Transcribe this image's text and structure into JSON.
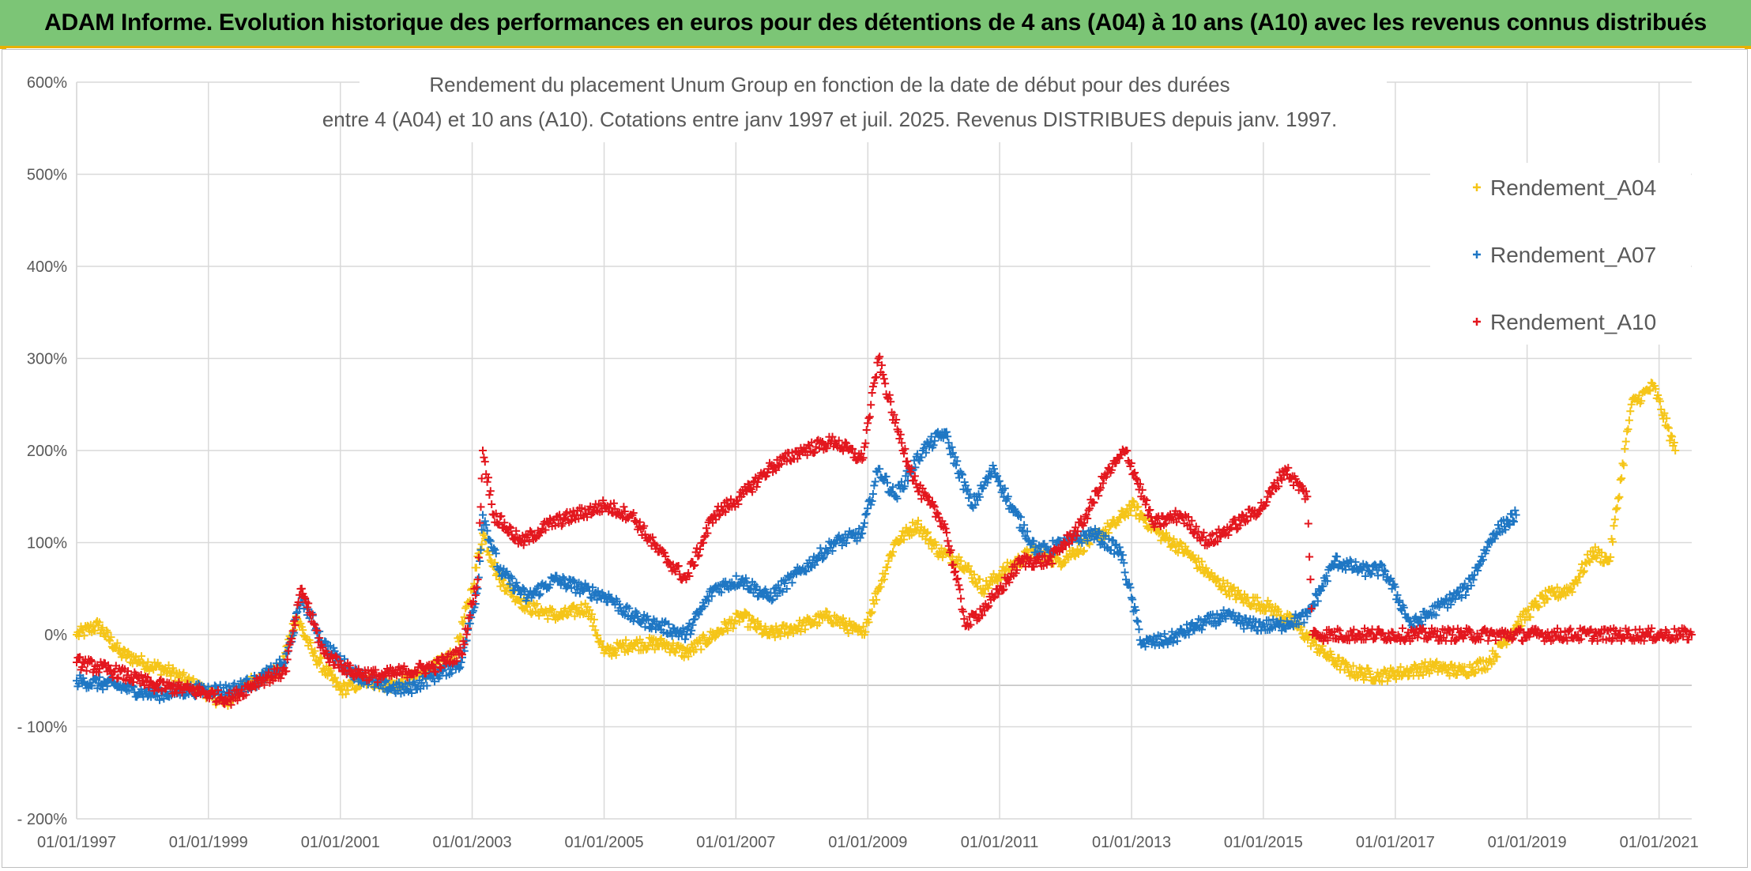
{
  "banner": {
    "title": "ADAM Informe. Evolution historique des performances en euros pour des détentions de 4 ans (A04) à 10 ans (A10) avec les revenus connus distribués"
  },
  "colors": {
    "A04": "#f5c518",
    "A07": "#1f77c4",
    "A10": "#e3171e",
    "banner_bg": "#7cc576",
    "banner_border": "#e8b100"
  },
  "chart_data": {
    "type": "scatter",
    "title_line1": "Rendement du placement Unum Group en fonction de la date de début pour des durées",
    "title_line2": "entre 4 (A04) et 10 ans (A10). Cotations entre janv 1997 et juil. 2025. Revenus DISTRIBUES depuis janv. 1997.",
    "xlabel": "",
    "ylabel": "",
    "marker": "+",
    "y_unit": "%",
    "xlim": [
      "1997-01-01",
      "2021-07-01"
    ],
    "ylim": [
      -200,
      600
    ],
    "x_ticks": [
      "01/01/1997",
      "01/01/1999",
      "01/01/2001",
      "01/01/2003",
      "01/01/2005",
      "01/01/2007",
      "01/01/2009",
      "01/01/2011",
      "01/01/2013",
      "01/01/2015",
      "01/01/2017",
      "01/01/2019",
      "01/01/2021"
    ],
    "y_ticks": [
      -200,
      -100,
      0,
      100,
      200,
      300,
      400,
      500,
      600
    ],
    "y_tick_labels": [
      "- 200%",
      "- 100%",
      "0%",
      "100%",
      "200%",
      "300%",
      "400%",
      "500%",
      "600%"
    ],
    "grid": true,
    "legend_position": "top-right",
    "series": [
      {
        "name": "Rendement_A04",
        "color": "#f5c518",
        "points": [
          [
            "1997-01-01",
            0
          ],
          [
            "1997-05-01",
            10
          ],
          [
            "1997-09-01",
            -20
          ],
          [
            "1998-01-01",
            -30
          ],
          [
            "1998-06-01",
            -40
          ],
          [
            "1998-12-01",
            -60
          ],
          [
            "1999-04-01",
            -75
          ],
          [
            "1999-09-01",
            -50
          ],
          [
            "2000-02-01",
            -40
          ],
          [
            "2000-05-01",
            20
          ],
          [
            "2000-08-01",
            -20
          ],
          [
            "2001-01-01",
            -60
          ],
          [
            "2001-06-01",
            -50
          ],
          [
            "2001-11-01",
            -55
          ],
          [
            "2002-05-01",
            -40
          ],
          [
            "2002-10-01",
            -20
          ],
          [
            "2003-01-01",
            50
          ],
          [
            "2003-03-01",
            110
          ],
          [
            "2003-06-01",
            60
          ],
          [
            "2003-11-01",
            30
          ],
          [
            "2004-05-01",
            20
          ],
          [
            "2004-10-01",
            30
          ],
          [
            "2005-01-01",
            -20
          ],
          [
            "2005-06-01",
            -10
          ],
          [
            "2005-12-01",
            -10
          ],
          [
            "2006-04-01",
            -20
          ],
          [
            "2006-09-01",
            0
          ],
          [
            "2007-02-01",
            20
          ],
          [
            "2007-07-01",
            0
          ],
          [
            "2008-01-01",
            10
          ],
          [
            "2008-06-01",
            20
          ],
          [
            "2008-12-01",
            0
          ],
          [
            "2009-03-01",
            50
          ],
          [
            "2009-06-01",
            100
          ],
          [
            "2009-10-01",
            120
          ],
          [
            "2010-02-01",
            90
          ],
          [
            "2010-06-01",
            80
          ],
          [
            "2010-10-01",
            50
          ],
          [
            "2011-02-01",
            70
          ],
          [
            "2011-07-01",
            90
          ],
          [
            "2011-12-01",
            80
          ],
          [
            "2012-05-01",
            100
          ],
          [
            "2012-10-01",
            120
          ],
          [
            "2013-01-01",
            140
          ],
          [
            "2013-06-01",
            110
          ],
          [
            "2013-11-01",
            90
          ],
          [
            "2014-04-01",
            60
          ],
          [
            "2014-09-01",
            40
          ],
          [
            "2015-02-01",
            30
          ],
          [
            "2015-07-01",
            10
          ],
          [
            "2015-12-01",
            -20
          ],
          [
            "2016-05-01",
            -40
          ],
          [
            "2016-10-01",
            -45
          ],
          [
            "2017-03-01",
            -40
          ],
          [
            "2017-08-01",
            -35
          ],
          [
            "2018-01-01",
            -40
          ],
          [
            "2018-06-01",
            -30
          ],
          [
            "2018-11-01",
            10
          ],
          [
            "2019-04-01",
            40
          ],
          [
            "2019-09-01",
            50
          ],
          [
            "2020-01-01",
            90
          ],
          [
            "2020-04-01",
            80
          ],
          [
            "2020-08-01",
            250
          ],
          [
            "2020-12-01",
            270
          ],
          [
            "2021-04-01",
            200
          ]
        ]
      },
      {
        "name": "Rendement_A07",
        "color": "#1f77c4",
        "points": [
          [
            "1997-01-01",
            -50
          ],
          [
            "1997-08-01",
            -55
          ],
          [
            "1998-03-01",
            -65
          ],
          [
            "1998-10-01",
            -60
          ],
          [
            "1999-05-01",
            -60
          ],
          [
            "1999-10-01",
            -50
          ],
          [
            "2000-03-01",
            -30
          ],
          [
            "2000-06-01",
            40
          ],
          [
            "2000-10-01",
            -10
          ],
          [
            "2001-03-01",
            -40
          ],
          [
            "2001-08-01",
            -55
          ],
          [
            "2002-01-01",
            -60
          ],
          [
            "2002-06-01",
            -45
          ],
          [
            "2002-11-01",
            -30
          ],
          [
            "2003-02-01",
            50
          ],
          [
            "2003-03-01",
            130
          ],
          [
            "2003-06-01",
            70
          ],
          [
            "2003-11-01",
            40
          ],
          [
            "2004-04-01",
            60
          ],
          [
            "2004-09-01",
            50
          ],
          [
            "2005-02-01",
            40
          ],
          [
            "2005-06-01",
            20
          ],
          [
            "2005-11-01",
            10
          ],
          [
            "2006-04-01",
            0
          ],
          [
            "2006-09-01",
            50
          ],
          [
            "2007-02-01",
            60
          ],
          [
            "2007-07-01",
            40
          ],
          [
            "2008-01-01",
            70
          ],
          [
            "2008-07-01",
            100
          ],
          [
            "2008-12-01",
            110
          ],
          [
            "2009-03-01",
            180
          ],
          [
            "2009-06-01",
            150
          ],
          [
            "2009-11-01",
            200
          ],
          [
            "2010-03-01",
            220
          ],
          [
            "2010-08-01",
            140
          ],
          [
            "2010-12-01",
            180
          ],
          [
            "2011-03-01",
            140
          ],
          [
            "2011-08-01",
            90
          ],
          [
            "2012-01-01",
            100
          ],
          [
            "2012-06-01",
            110
          ],
          [
            "2012-11-01",
            90
          ],
          [
            "2013-03-01",
            -10
          ],
          [
            "2013-08-01",
            -5
          ],
          [
            "2014-01-01",
            10
          ],
          [
            "2014-06-01",
            20
          ],
          [
            "2014-11-01",
            10
          ],
          [
            "2015-04-01",
            10
          ],
          [
            "2015-09-01",
            20
          ],
          [
            "2016-02-01",
            80
          ],
          [
            "2016-07-01",
            70
          ],
          [
            "2016-11-01",
            70
          ],
          [
            "2017-04-01",
            10
          ],
          [
            "2017-09-01",
            30
          ],
          [
            "2018-02-01",
            50
          ],
          [
            "2018-07-01",
            110
          ],
          [
            "2018-11-01",
            130
          ]
        ]
      },
      {
        "name": "Rendement_A10",
        "color": "#e3171e",
        "points": [
          [
            "1997-01-01",
            -30
          ],
          [
            "1997-08-01",
            -40
          ],
          [
            "1998-03-01",
            -55
          ],
          [
            "1998-10-01",
            -60
          ],
          [
            "1999-05-01",
            -70
          ],
          [
            "1999-10-01",
            -50
          ],
          [
            "2000-03-01",
            -40
          ],
          [
            "2000-06-01",
            50
          ],
          [
            "2000-10-01",
            -20
          ],
          [
            "2001-03-01",
            -40
          ],
          [
            "2001-08-01",
            -45
          ],
          [
            "2002-01-01",
            -40
          ],
          [
            "2002-06-01",
            -35
          ],
          [
            "2002-11-01",
            -20
          ],
          [
            "2003-02-01",
            60
          ],
          [
            "2003-03-01",
            200
          ],
          [
            "2003-05-01",
            130
          ],
          [
            "2003-10-01",
            100
          ],
          [
            "2004-03-01",
            120
          ],
          [
            "2004-08-01",
            130
          ],
          [
            "2005-01-01",
            140
          ],
          [
            "2005-06-01",
            130
          ],
          [
            "2005-11-01",
            90
          ],
          [
            "2006-04-01",
            60
          ],
          [
            "2006-09-01",
            130
          ],
          [
            "2007-02-01",
            150
          ],
          [
            "2007-07-01",
            180
          ],
          [
            "2008-01-01",
            200
          ],
          [
            "2008-07-01",
            210
          ],
          [
            "2008-12-01",
            190
          ],
          [
            "2009-03-01",
            300
          ],
          [
            "2009-06-01",
            230
          ],
          [
            "2009-10-01",
            160
          ],
          [
            "2010-03-01",
            120
          ],
          [
            "2010-07-01",
            10
          ],
          [
            "2010-12-01",
            40
          ],
          [
            "2011-05-01",
            80
          ],
          [
            "2011-10-01",
            80
          ],
          [
            "2012-04-01",
            120
          ],
          [
            "2012-08-01",
            170
          ],
          [
            "2012-12-01",
            200
          ],
          [
            "2013-05-01",
            120
          ],
          [
            "2013-10-01",
            130
          ],
          [
            "2014-03-01",
            100
          ],
          [
            "2014-08-01",
            120
          ],
          [
            "2015-01-01",
            140
          ],
          [
            "2015-05-01",
            180
          ],
          [
            "2015-09-01",
            150
          ],
          [
            "2015-10-01",
            0
          ],
          [
            "2021-07-01",
            0
          ]
        ]
      }
    ],
    "annotations": []
  }
}
